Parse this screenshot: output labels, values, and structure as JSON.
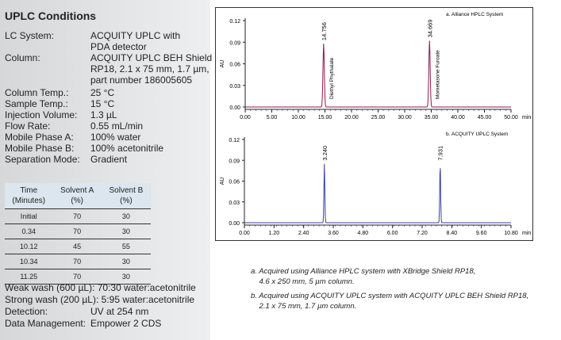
{
  "title": "UPLC Conditions",
  "conditions": [
    {
      "k": "LC System:",
      "v": "ACQUITY UPLC with\nPDA detector"
    },
    {
      "k": "Column:",
      "v": "ACQUITY UPLC BEH Shield\nRP18, 2.1 x 75 mm, 1.7 µm,\npart number 186005605"
    },
    {
      "k": "Column Temp.:",
      "v": "25 °C"
    },
    {
      "k": "Sample Temp.:",
      "v": "15 °C"
    },
    {
      "k": "Injection Volume:",
      "v": "1.3 µL"
    },
    {
      "k": "Flow Rate:",
      "v": "0.55 mL/min"
    },
    {
      "k": "Mobile Phase A:",
      "v": "100% water"
    },
    {
      "k": "Mobile Phase B:",
      "v": "100% acetonitrile"
    },
    {
      "k": "Separation Mode:",
      "v": "Gradient"
    }
  ],
  "gradient_table": {
    "headers": [
      [
        "Time",
        "(Minutes)"
      ],
      [
        "Solvent A",
        "(%)"
      ],
      [
        "Solvent B",
        "(%)"
      ]
    ],
    "rows": [
      [
        "Initial",
        "70",
        "30"
      ],
      [
        "0.34",
        "70",
        "30"
      ],
      [
        "10.12",
        "45",
        "55"
      ],
      [
        "10.34",
        "70",
        "30"
      ],
      [
        "11.25",
        "70",
        "30"
      ]
    ]
  },
  "post": [
    {
      "k": "Weak wash (600 µL): 70:30 water:acetonitrile",
      "v": ""
    },
    {
      "k": "Strong wash (200 µL): 5:95 water:acetonitrile",
      "v": ""
    },
    {
      "k": "Detection:",
      "v": "UV at 254 nm"
    },
    {
      "k": "Data Management:",
      "v": "Empower 2 CDS"
    }
  ],
  "captions": [
    "a. Acquired using Alliance HPLC system with XBridge Shield RP18,\n    4.6 x 250 mm, 5 µm column.",
    "b. Acquired using ACQUITY UPLC system with ACQUITY UPLC BEH Shield RP18,\n    2.1 x 75 mm, 1.7 µm column."
  ],
  "chart_data": [
    {
      "type": "line",
      "title": "a. Alliance HPLC System",
      "ylabel": "AU",
      "xunit": "min",
      "color": "#8b1a4a",
      "xlim": [
        0,
        50
      ],
      "ylim": [
        0,
        0.12
      ],
      "xticks": [
        "0.00",
        "5.00",
        "10.00",
        "15.00",
        "20.00",
        "25.00",
        "30.00",
        "35.00",
        "40.00",
        "45.00",
        "50.00"
      ],
      "yticks": [
        "0.00",
        "0.03",
        "0.06",
        "0.09",
        "0.12"
      ],
      "peaks": [
        {
          "rt": 14.756,
          "height": 0.088,
          "label": "14.756",
          "name": "Diethyl Phythalate"
        },
        {
          "rt": 34.669,
          "height": 0.092,
          "label": "34.669",
          "name": "Mometasone Furoate"
        }
      ],
      "width": 0.25
    },
    {
      "type": "line",
      "title": "b. ACQUITY UPLC System",
      "ylabel": "AU",
      "xunit": "min",
      "color": "#3a3f9a",
      "xlim": [
        0,
        10.8
      ],
      "ylim": [
        0,
        0.12
      ],
      "xticks": [
        "0.00",
        "1.20",
        "2.40",
        "3.60",
        "4.80",
        "6.00",
        "7.20",
        "8.40",
        "9.60",
        "10.80"
      ],
      "yticks": [
        "0.00",
        "0.03",
        "0.06",
        "0.09",
        "0.12"
      ],
      "peaks": [
        {
          "rt": 3.24,
          "height": 0.085,
          "label": "3.240",
          "name": ""
        },
        {
          "rt": 7.931,
          "height": 0.085,
          "label": "7.931",
          "name": ""
        }
      ],
      "width": 0.035
    }
  ]
}
